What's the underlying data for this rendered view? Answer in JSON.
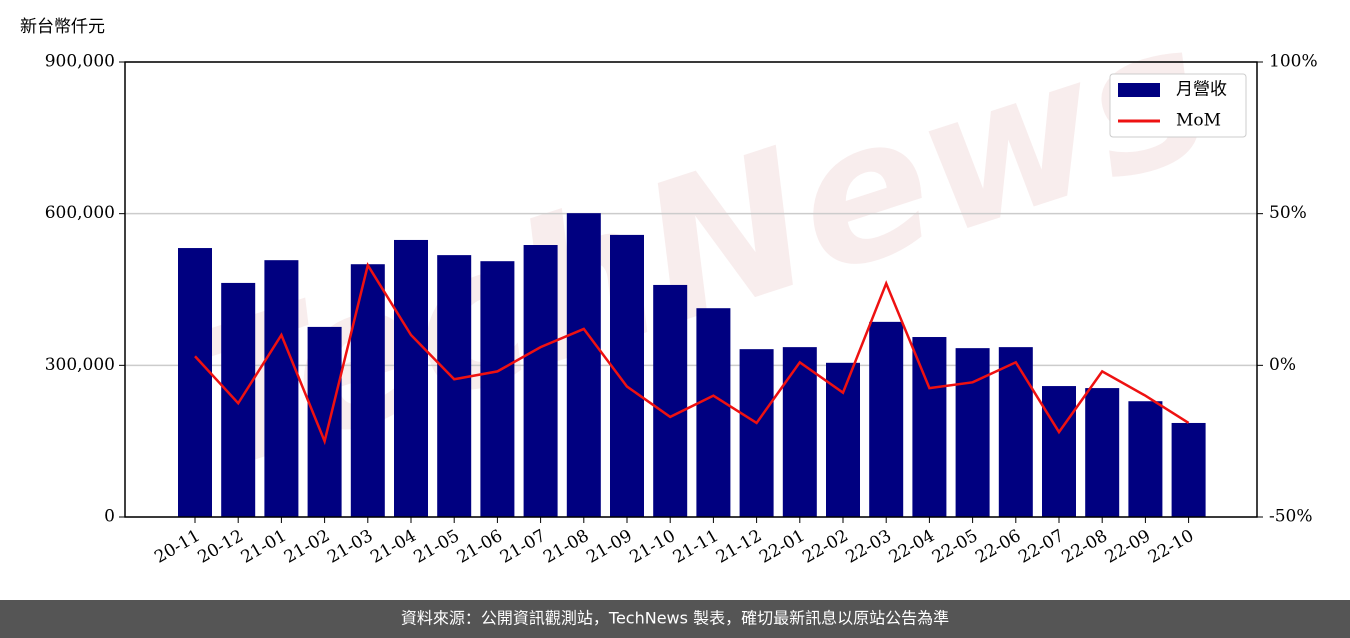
{
  "chart_data": {
    "type": "bar-line",
    "y_unit_label": "新台幣仟元",
    "watermark": "TechNews",
    "categories": [
      "20-11",
      "20-12",
      "21-01",
      "21-02",
      "21-03",
      "21-04",
      "21-05",
      "21-06",
      "21-07",
      "21-08",
      "21-09",
      "21-10",
      "21-11",
      "21-12",
      "22-01",
      "22-02",
      "22-03",
      "22-04",
      "22-05",
      "22-06",
      "22-07",
      "22-08",
      "22-09",
      "22-10"
    ],
    "series": [
      {
        "name": "月營收",
        "color": "#000080",
        "type": "bar",
        "values": [
          532000,
          463000,
          508000,
          376000,
          500000,
          548000,
          518000,
          506000,
          538000,
          601000,
          558000,
          459000,
          413000,
          332000,
          336000,
          305000,
          386000,
          356000,
          334000,
          336000,
          259000,
          255000,
          229000,
          186000
        ]
      },
      {
        "name": "MoM",
        "color": "#ee1111",
        "type": "line",
        "axis": "y2",
        "values": [
          3,
          -12.5,
          10,
          -25,
          33,
          10,
          -4.6,
          -2,
          6,
          12,
          -7,
          -17,
          -10,
          -19,
          1,
          -9,
          27,
          -7.5,
          -5.6,
          1,
          -22,
          -2,
          -10,
          -19
        ]
      }
    ],
    "ylim": [
      0,
      900000
    ],
    "yticks": [
      0,
      {
        "value": 300000,
        "label": "300,000"
      },
      {
        "value": 600000,
        "label": "600,000"
      },
      {
        "value": 900000,
        "label": "900,000"
      }
    ],
    "y2lim": [
      -50,
      100
    ],
    "y2ticks": [
      {
        "value": -50,
        "label": "-50%"
      },
      {
        "value": 0,
        "label": "0%"
      },
      {
        "value": 50,
        "label": "50%"
      },
      {
        "value": 100,
        "label": "100%"
      }
    ],
    "grid": true,
    "legend": "upper right",
    "footer": "資料來源：公開資訊觀測站，TechNews 製表，確切最新訊息以原站公告為準"
  }
}
